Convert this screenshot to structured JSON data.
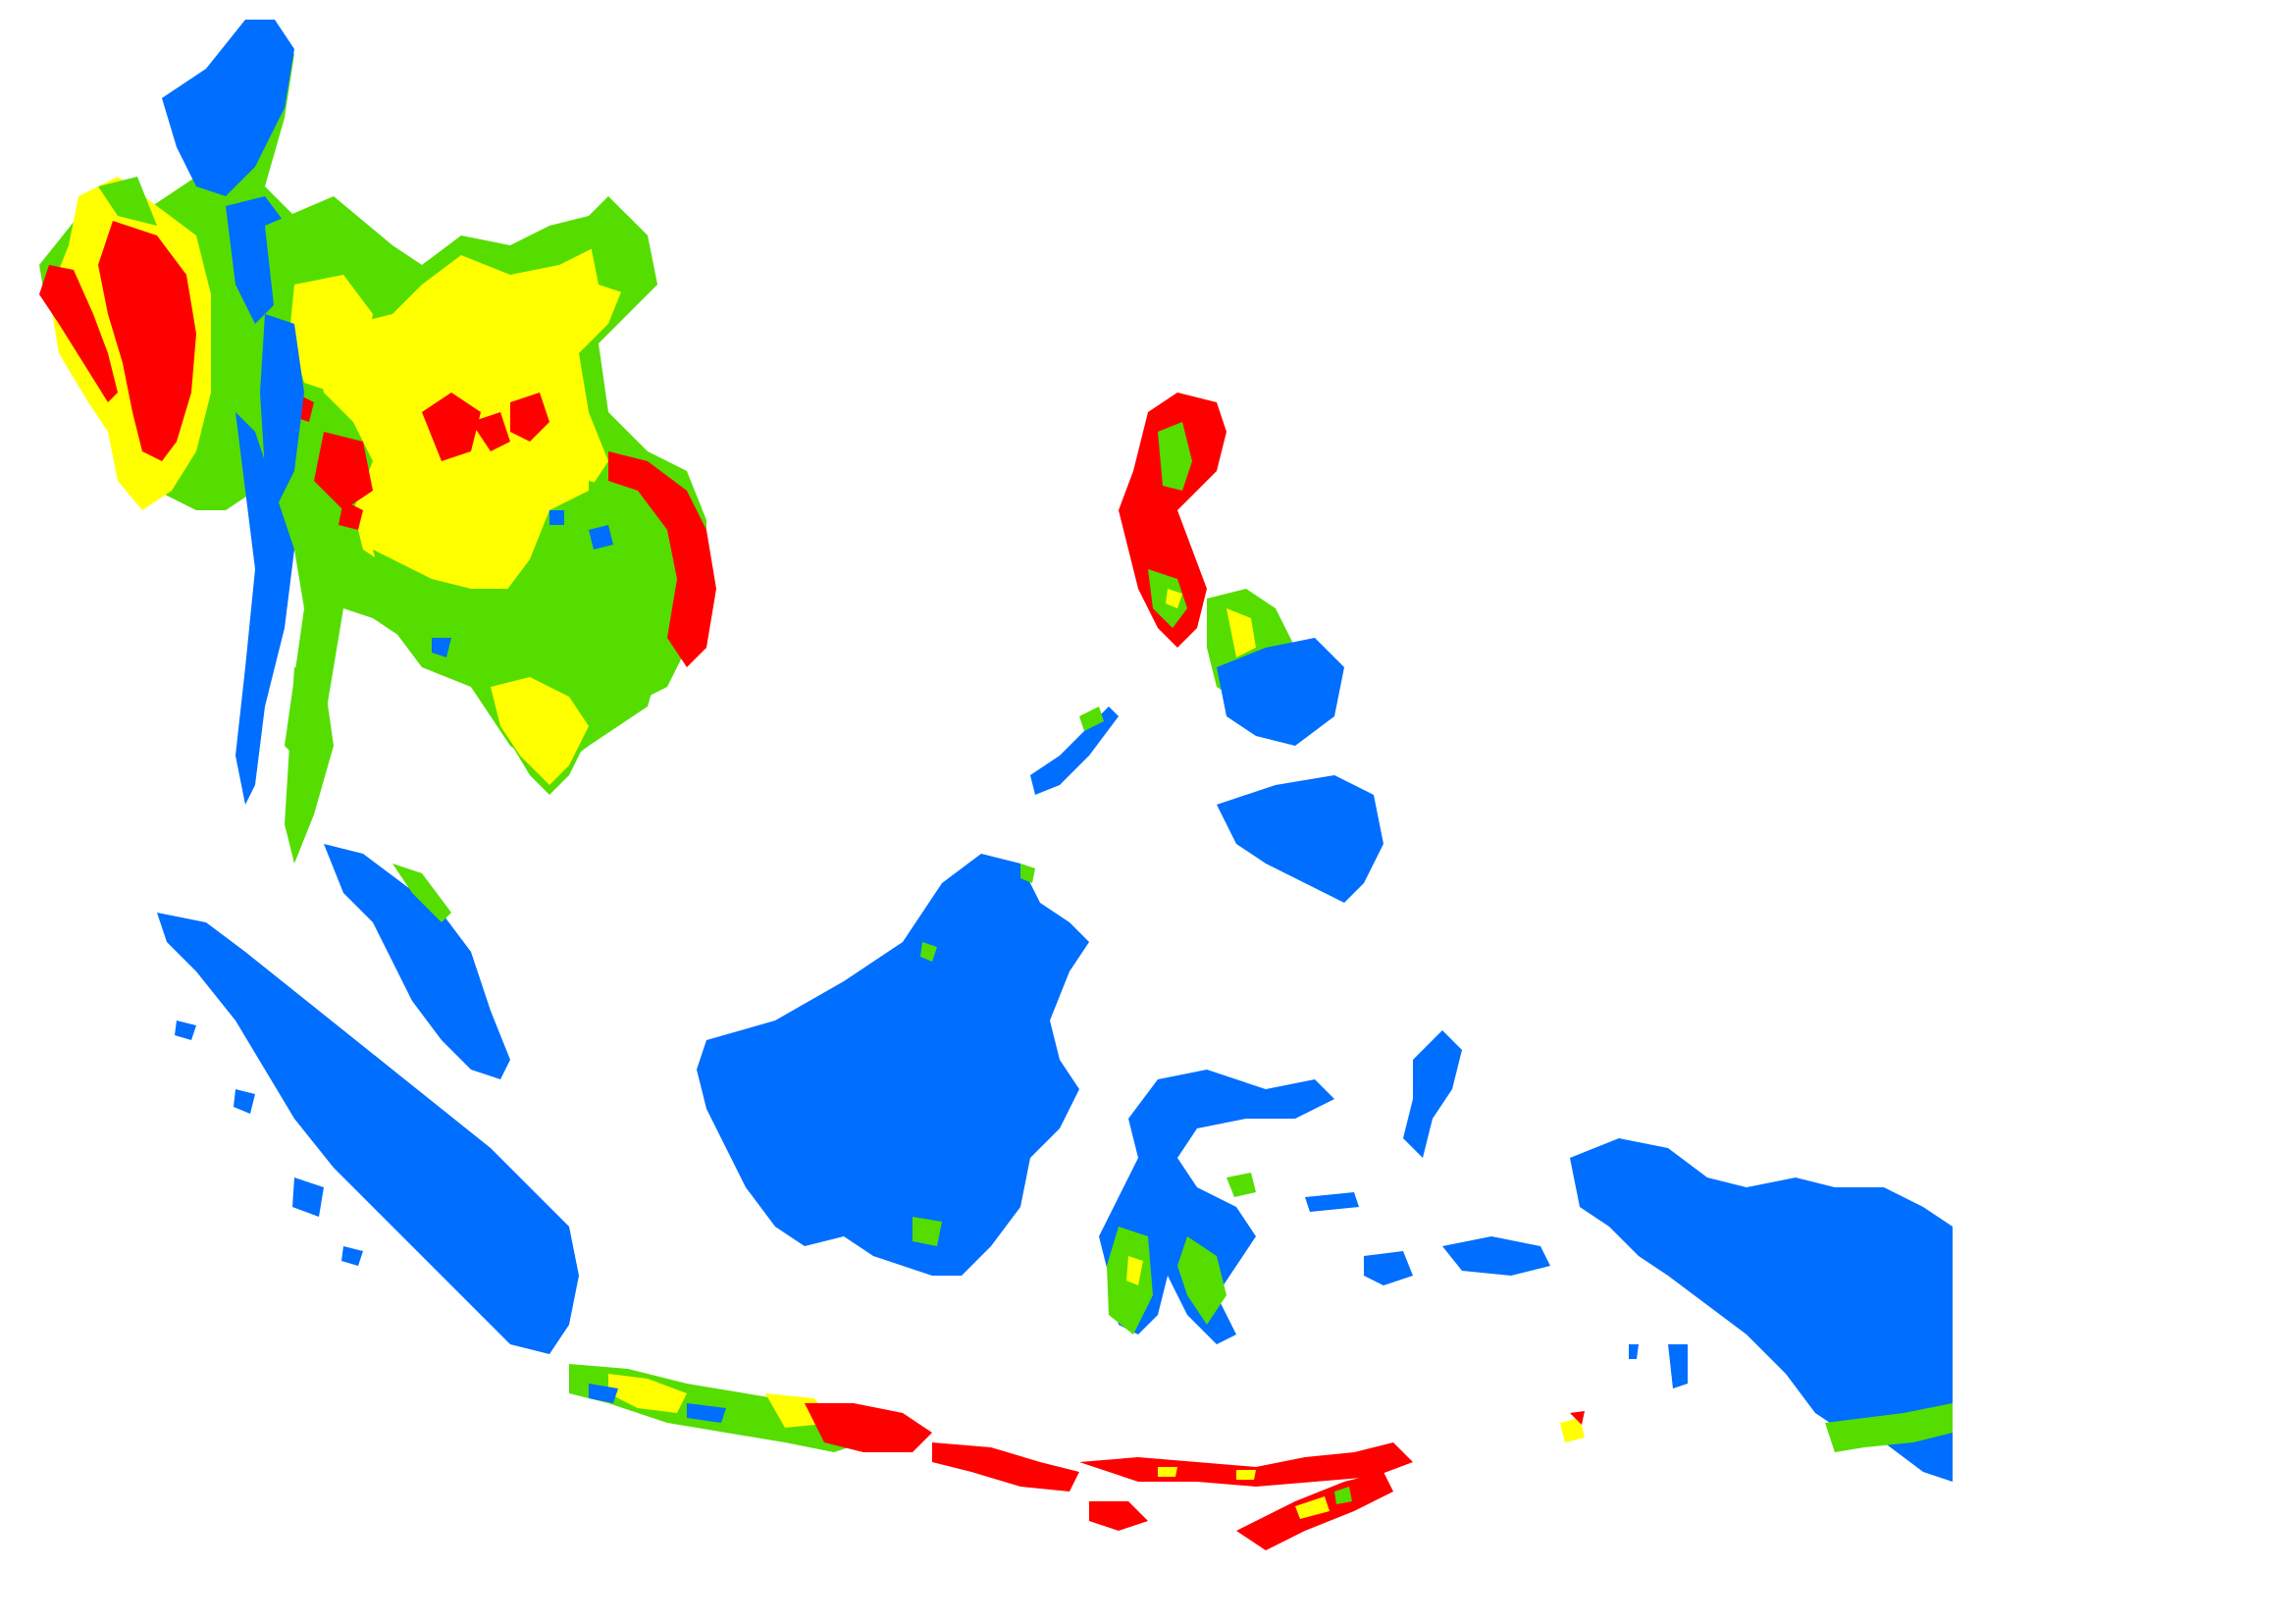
{
  "map": {
    "type": "categorical-choropleth",
    "region": "Southeast Asia",
    "background_color": "#ffffff",
    "legend": null,
    "title": "",
    "classes": [
      {
        "id": "blue",
        "color": "#006eff"
      },
      {
        "id": "green",
        "color": "#55dd00"
      },
      {
        "id": "yellow",
        "color": "#ffff00"
      },
      {
        "id": "red",
        "color": "#ff0000"
      }
    ],
    "regions": [
      {
        "id": "myanmar",
        "dominant": [
          "red",
          "green",
          "blue",
          "yellow"
        ]
      },
      {
        "id": "thailand",
        "dominant": [
          "yellow",
          "green",
          "blue",
          "red"
        ]
      },
      {
        "id": "laos",
        "dominant": [
          "yellow",
          "green",
          "red"
        ]
      },
      {
        "id": "cambodia",
        "dominant": [
          "green",
          "yellow"
        ]
      },
      {
        "id": "vietnam",
        "dominant": [
          "red",
          "green",
          "yellow",
          "blue"
        ]
      },
      {
        "id": "malay-peninsula",
        "dominant": [
          "blue",
          "green"
        ]
      },
      {
        "id": "sumatra",
        "dominant": [
          "blue"
        ]
      },
      {
        "id": "borneo",
        "dominant": [
          "blue",
          "green"
        ]
      },
      {
        "id": "sulawesi",
        "dominant": [
          "blue",
          "green",
          "yellow"
        ]
      },
      {
        "id": "luzon",
        "dominant": [
          "red",
          "green",
          "yellow"
        ]
      },
      {
        "id": "visayas-mindanao",
        "dominant": [
          "blue",
          "green",
          "yellow"
        ]
      },
      {
        "id": "java",
        "dominant": [
          "green",
          "yellow",
          "red",
          "blue"
        ]
      },
      {
        "id": "lesser-sunda",
        "dominant": [
          "red",
          "yellow",
          "green"
        ]
      },
      {
        "id": "timor",
        "dominant": [
          "red",
          "yellow",
          "green"
        ]
      },
      {
        "id": "maluku",
        "dominant": [
          "blue"
        ]
      },
      {
        "id": "new-guinea-west",
        "dominant": [
          "blue",
          "green"
        ]
      }
    ]
  }
}
